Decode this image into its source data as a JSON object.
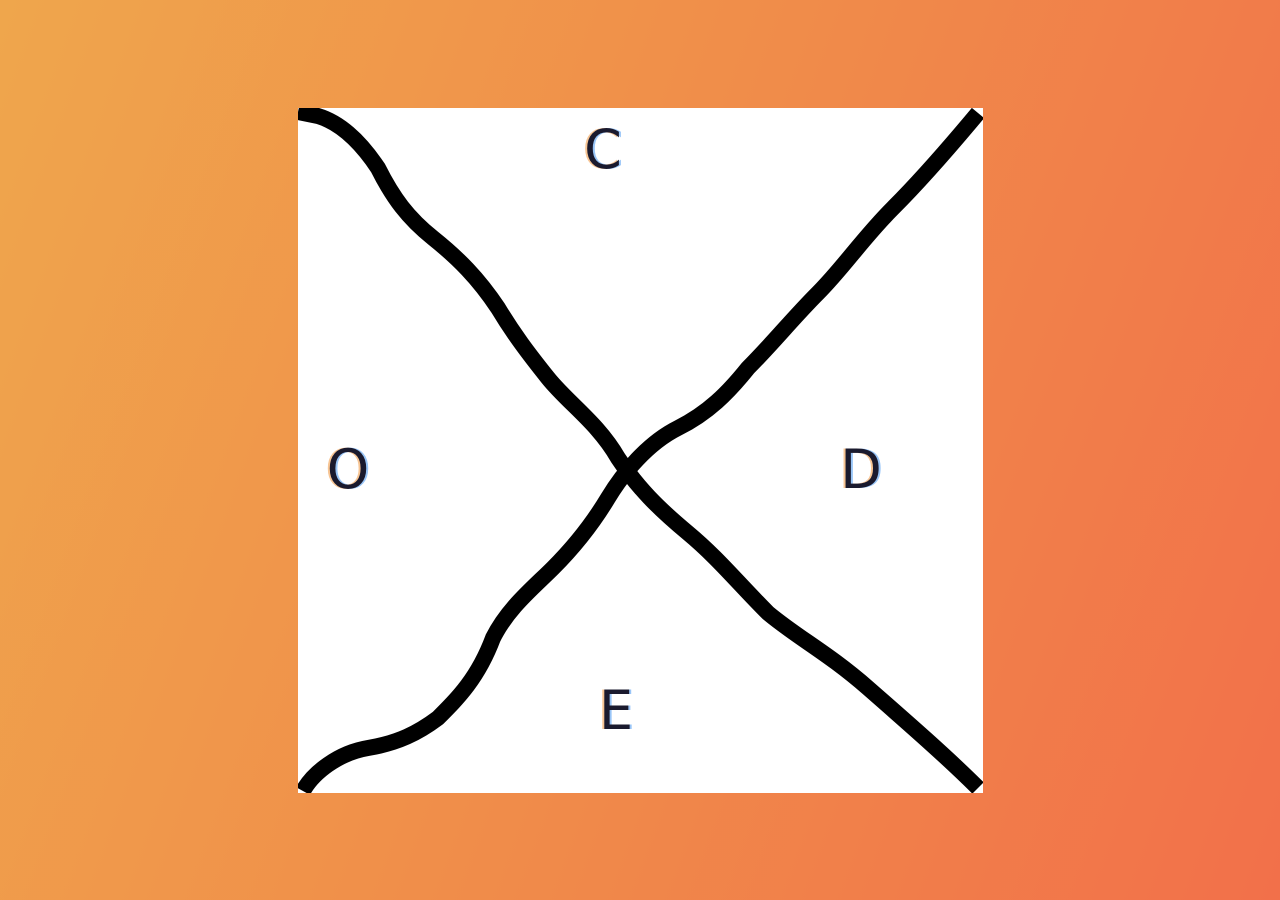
{
  "diagram": {
    "regions": {
      "top": "C",
      "left": "O",
      "right": "D",
      "bottom": "E"
    },
    "colors": {
      "background_start": "#efa64c",
      "background_end": "#f2704a",
      "panel": "#ffffff",
      "lines": "#000000",
      "text": "#1a1a2e"
    }
  }
}
